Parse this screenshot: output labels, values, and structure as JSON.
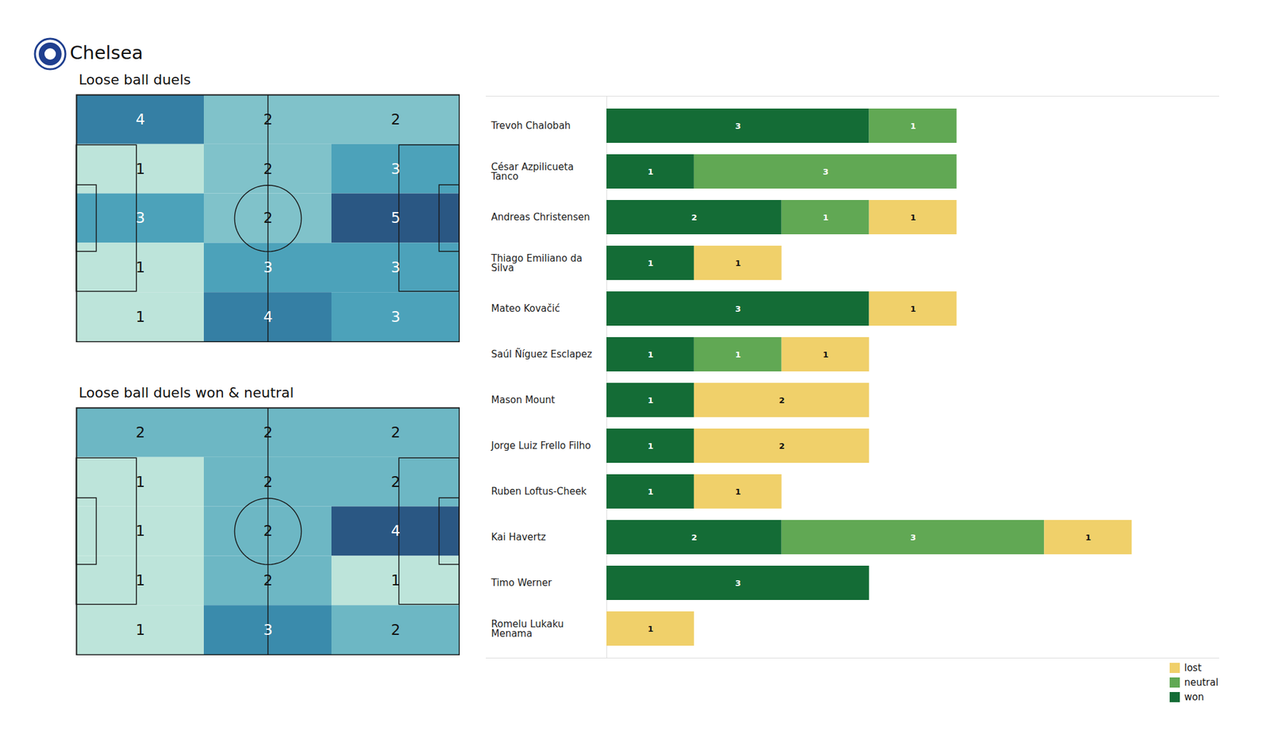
{
  "title": "Chelsea",
  "chart_data": [
    {
      "type": "heatmap",
      "title": "Loose ball duels",
      "data_labels": true,
      "tick_labels": false,
      "cells": [
        [
          4,
          2,
          2
        ],
        [
          1,
          2,
          3
        ],
        [
          3,
          2,
          5
        ],
        [
          1,
          3,
          3
        ],
        [
          1,
          4,
          3
        ]
      ]
    },
    {
      "type": "heatmap",
      "title": "Loose ball duels won & neutral",
      "data_labels": true,
      "tick_labels": false,
      "cells": [
        [
          2,
          2,
          2
        ],
        [
          1,
          2,
          2
        ],
        [
          1,
          2,
          4
        ],
        [
          1,
          2,
          1
        ],
        [
          1,
          3,
          2
        ]
      ]
    },
    {
      "type": "bar",
      "orientation": "horizontal",
      "stacked": true,
      "data_labels": true,
      "tick_labels": "y",
      "legend": "bottom-right",
      "xlim": [
        0,
        7
      ],
      "categories": [
        "Trevoh Chalobah",
        "César Azpilicueta Tanco",
        "Andreas Christensen",
        "Thiago Emiliano da Silva",
        "Mateo Kovačić",
        "Saúl Ñíguez Esclapez",
        "Mason Mount",
        "Jorge Luiz Frello Filho",
        "Ruben Loftus-Cheek",
        "Kai Havertz",
        "Timo Werner",
        "Romelu Lukaku Menama"
      ],
      "series": [
        {
          "name": "won",
          "color": "#146c36",
          "values": [
            3,
            1,
            2,
            1,
            3,
            1,
            1,
            1,
            1,
            2,
            3,
            0
          ]
        },
        {
          "name": "neutral",
          "color": "#61a854",
          "values": [
            1,
            3,
            1,
            0,
            0,
            1,
            0,
            0,
            0,
            3,
            0,
            0
          ]
        },
        {
          "name": "lost",
          "color": "#f0d06a",
          "values": [
            0,
            0,
            1,
            1,
            1,
            1,
            2,
            2,
            1,
            1,
            0,
            1
          ]
        }
      ]
    }
  ]
}
